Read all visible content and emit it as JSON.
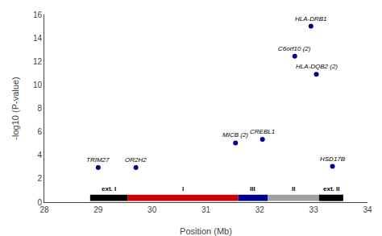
{
  "chart_data": {
    "type": "scatter",
    "xlabel": "Position (Mb)",
    "ylabel": "-log10 (P-value)",
    "xlim": [
      28,
      34
    ],
    "ylim": [
      0,
      16
    ],
    "xticks": [
      28,
      29,
      30,
      31,
      32,
      33,
      34
    ],
    "yticks": [
      0,
      2,
      4,
      6,
      8,
      10,
      12,
      14,
      16
    ],
    "grid": false,
    "series": [
      {
        "color": "#00008B",
        "marker": "circle",
        "x": [
          29.0,
          29.7,
          31.55,
          32.05,
          32.65,
          33.05,
          32.95,
          33.35
        ],
        "values": [
          2.95,
          2.95,
          5.05,
          5.35,
          12.45,
          10.9,
          15.0,
          3.05
        ],
        "point_labels": [
          "TRIM27",
          "OR2H2",
          "MICB (2)",
          "CREBL1",
          "C6orf10 (2)",
          "HLA-DQB2 (2)",
          "HLA-DRB1",
          "HSD17B"
        ]
      }
    ],
    "regions": [
      {
        "x0": 28.85,
        "x1": 29.55,
        "color": "#000000",
        "label": "ext. I"
      },
      {
        "x0": 29.55,
        "x1": 31.6,
        "color": "#CC0000",
        "label": "I"
      },
      {
        "x0": 31.6,
        "x1": 32.15,
        "color": "#00008B",
        "label": "III"
      },
      {
        "x0": 32.15,
        "x1": 33.1,
        "color": "#A0A0A0",
        "label": "II"
      },
      {
        "x0": 33.1,
        "x1": 33.55,
        "color": "#000000",
        "label": "ext. II"
      }
    ]
  }
}
